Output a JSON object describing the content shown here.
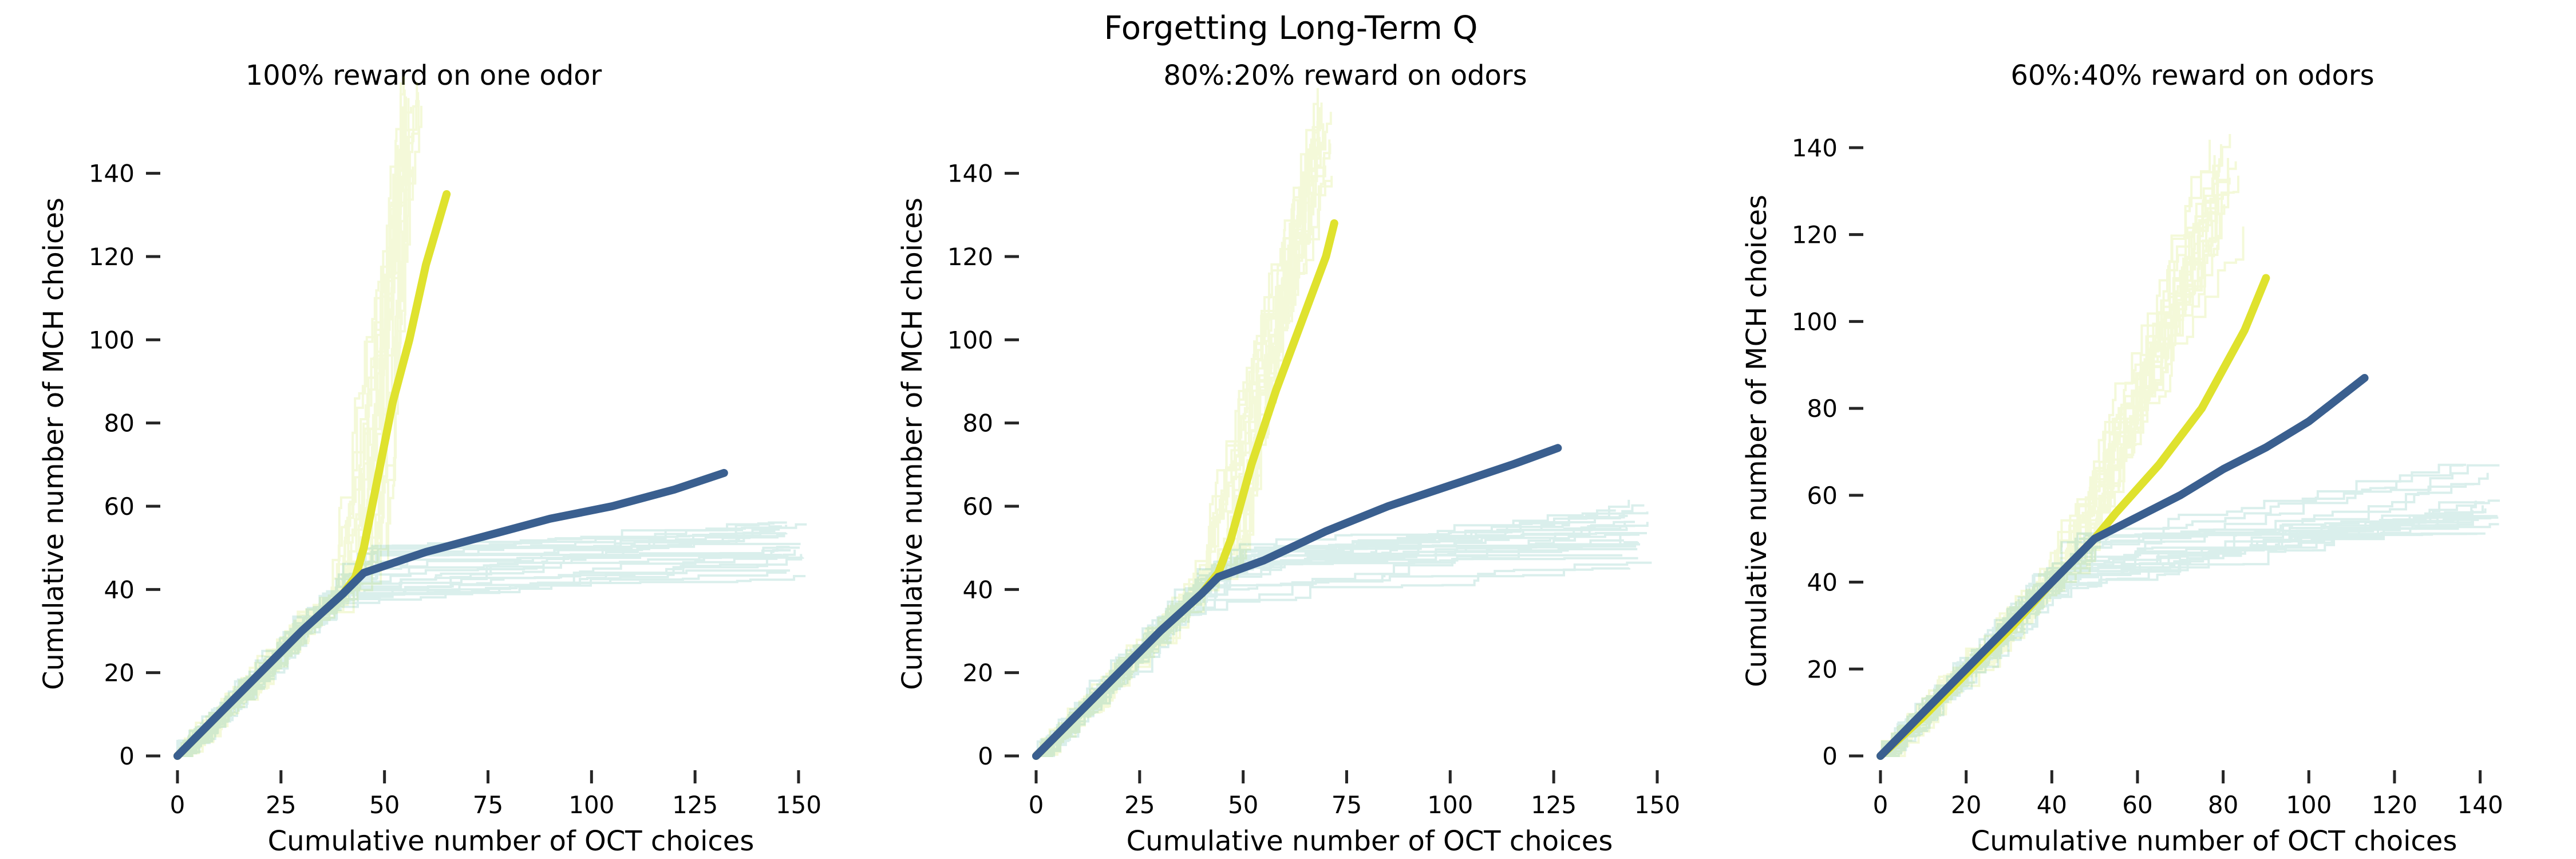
{
  "figure": {
    "suptitle": "Forgetting Long-Term Q"
  },
  "style": {
    "mean_colors": [
      "#dfe22e",
      "#3a5f8f"
    ],
    "trace_colors": [
      "#c4df33",
      "#3aa89a"
    ],
    "axis_color": "#262626",
    "trace_opacity": 0.18
  },
  "chart_data": [
    {
      "type": "line",
      "title": "100% reward on one odor",
      "xlabel": "Cumulative number of OCT choices",
      "ylabel": "Cumulative number of MCH choices",
      "xlim": [
        0,
        150
      ],
      "ylim": [
        0,
        150
      ],
      "xticks": [
        0,
        25,
        50,
        75,
        100,
        125,
        150
      ],
      "yticks": [
        0,
        20,
        40,
        60,
        80,
        100,
        120,
        140
      ],
      "grid": false,
      "series": [
        {
          "x": [
            0,
            5,
            10,
            20,
            30,
            40,
            43,
            45,
            48,
            52,
            56,
            60,
            65
          ],
          "y": [
            0,
            5,
            10,
            20,
            30,
            39,
            43,
            50,
            65,
            85,
            100,
            118,
            135
          ]
        },
        {
          "x": [
            0,
            10,
            20,
            30,
            40,
            45,
            60,
            75,
            90,
            105,
            120,
            132
          ],
          "y": [
            0,
            10,
            20,
            30,
            39,
            44,
            49,
            53,
            57,
            60,
            64,
            68
          ]
        }
      ],
      "traces": [
        {
          "end": [
            55,
            150
          ],
          "spread": 0.14,
          "count": 22
        },
        {
          "end": [
            148,
            48
          ],
          "spread": 0.2,
          "count": 22
        }
      ]
    },
    {
      "type": "line",
      "title": "80%:20% reward on odors",
      "xlabel": "Cumulative number of OCT choices",
      "ylabel": "Cumulative number of MCH choices",
      "xlim": [
        0,
        150
      ],
      "ylim": [
        0,
        150
      ],
      "xticks": [
        0,
        25,
        50,
        75,
        100,
        125,
        150
      ],
      "yticks": [
        0,
        20,
        40,
        60,
        80,
        100,
        120,
        140
      ],
      "grid": false,
      "series": [
        {
          "x": [
            0,
            5,
            10,
            20,
            30,
            40,
            44,
            47,
            52,
            58,
            64,
            70,
            72
          ],
          "y": [
            0,
            5,
            10,
            20,
            30,
            39,
            44,
            52,
            70,
            88,
            104,
            120,
            128
          ]
        },
        {
          "x": [
            0,
            10,
            20,
            30,
            40,
            44,
            55,
            70,
            85,
            100,
            115,
            126
          ],
          "y": [
            0,
            10,
            20,
            30,
            39,
            43,
            47,
            54,
            60,
            65,
            70,
            74
          ]
        }
      ],
      "traces": [
        {
          "end": [
            68,
            148
          ],
          "spread": 0.14,
          "count": 22
        },
        {
          "end": [
            145,
            52
          ],
          "spread": 0.2,
          "count": 22
        }
      ]
    },
    {
      "type": "line",
      "title": "60%:40% reward on odors",
      "xlabel": "Cumulative number of OCT choices",
      "ylabel": "Cumulative number of MCH choices",
      "xlim": [
        0,
        145
      ],
      "ylim": [
        0,
        145
      ],
      "xticks": [
        0,
        20,
        40,
        60,
        80,
        100,
        120,
        140
      ],
      "yticks": [
        0,
        20,
        40,
        60,
        80,
        100,
        120,
        140
      ],
      "grid": false,
      "series": [
        {
          "x": [
            0,
            10,
            20,
            30,
            40,
            50,
            55,
            65,
            75,
            85,
            90
          ],
          "y": [
            0,
            9,
            19,
            29,
            40,
            50,
            56,
            67,
            80,
            98,
            110
          ]
        },
        {
          "x": [
            0,
            10,
            20,
            30,
            40,
            50,
            60,
            70,
            80,
            90,
            100,
            113
          ],
          "y": [
            0,
            10,
            20,
            30,
            40,
            50,
            55,
            60,
            66,
            71,
            77,
            87
          ]
        }
      ],
      "traces": [
        {
          "end": [
            80,
            130
          ],
          "spread": 0.18,
          "count": 22
        },
        {
          "end": [
            140,
            58
          ],
          "spread": 0.2,
          "count": 22
        }
      ]
    }
  ]
}
